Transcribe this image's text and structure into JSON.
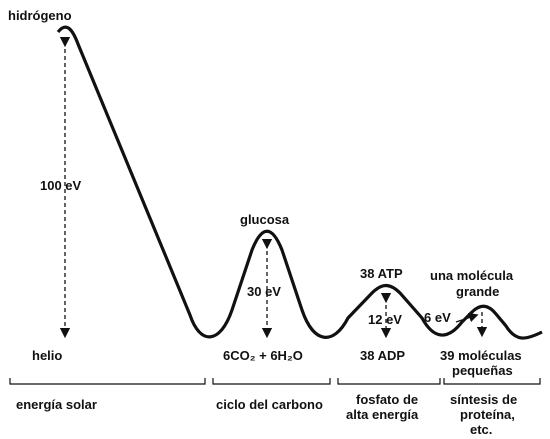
{
  "title": "hidrógeno",
  "levels": {
    "helio": "helio",
    "hydrogen_gap": "100 eV"
  },
  "peaks": [
    {
      "label": "glucosa",
      "gap": "30 eV",
      "base": "6CO₂ + 6H₂O"
    },
    {
      "label": "38 ATP",
      "gap": "12 eV",
      "base": "38 ADP"
    },
    {
      "label": [
        "una molécula",
        "grande"
      ],
      "gap": "6 eV",
      "base": [
        "39 moléculas",
        "pequeñas"
      ]
    }
  ],
  "stages": [
    [
      "energía solar"
    ],
    [
      "ciclo del carbono"
    ],
    [
      "fosfato de",
      "alta energía"
    ],
    [
      "síntesis de",
      "proteína,",
      "etc."
    ]
  ]
}
